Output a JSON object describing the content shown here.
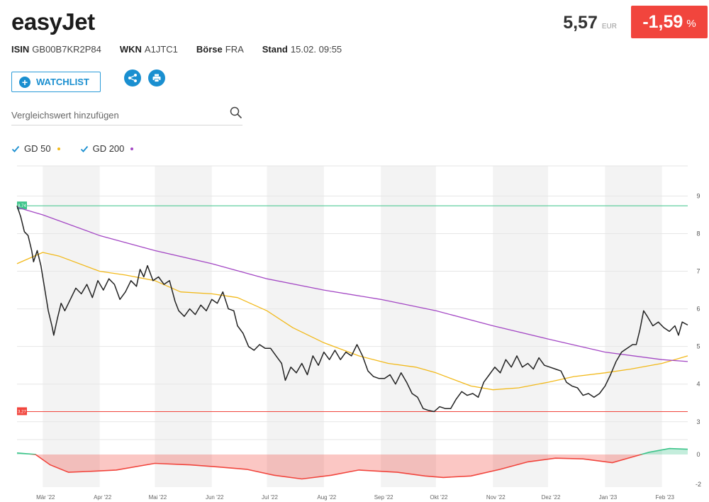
{
  "header": {
    "title": "easyJet",
    "price": "5,57",
    "currency": "EUR",
    "change": "-1,59",
    "change_unit": "%",
    "change_color": "#f1453d"
  },
  "meta": {
    "isin_label": "ISIN",
    "isin": "GB00B7KR2P84",
    "wkn_label": "WKN",
    "wkn": "A1JTC1",
    "exchange_label": "Börse",
    "exchange": "FRA",
    "stand_label": "Stand",
    "stand": "15.02. 09:55"
  },
  "actions": {
    "watchlist_label": "WATCHLIST",
    "share_icon": "share-icon",
    "print_icon": "print-icon"
  },
  "search": {
    "placeholder": "Vergleichswert hinzufügen"
  },
  "legend": {
    "gd50_label": "GD 50",
    "gd50_color": "#f2b91a",
    "gd200_label": "GD 200",
    "gd200_color": "#a347c4"
  },
  "chart_data": {
    "type": "line",
    "x_start": "2022-02-15",
    "x_end": "2023-02-15",
    "x_ticks": [
      {
        "label": "Mär '22",
        "date": "2022-03-01"
      },
      {
        "label": "Apr '22",
        "date": "2022-04-01"
      },
      {
        "label": "Mai '22",
        "date": "2022-05-01"
      },
      {
        "label": "Jun '22",
        "date": "2022-06-01"
      },
      {
        "label": "Jul '22",
        "date": "2022-07-01"
      },
      {
        "label": "Aug '22",
        "date": "2022-08-01"
      },
      {
        "label": "Sep '22",
        "date": "2022-09-01"
      },
      {
        "label": "Okt '22",
        "date": "2022-10-01"
      },
      {
        "label": "Nov '22",
        "date": "2022-11-01"
      },
      {
        "label": "Dez '22",
        "date": "2022-12-01"
      },
      {
        "label": "Jan '23",
        "date": "2023-01-01"
      },
      {
        "label": "Feb '23",
        "date": "2023-02-01"
      }
    ],
    "ylim": [
      2.6,
      9.8
    ],
    "yticks": [
      3,
      4,
      5,
      6,
      7,
      8,
      9
    ],
    "high_line": {
      "value": 8.74,
      "label": "8,74",
      "color": "#3cc48a"
    },
    "low_line": {
      "value": 3.27,
      "label": "3,27",
      "color": "#f1453d"
    },
    "series": [
      {
        "color": "#222222",
        "points": [
          [
            "2022-02-15",
            8.74
          ],
          [
            "2022-02-17",
            8.45
          ],
          [
            "2022-02-19",
            8.05
          ],
          [
            "2022-02-21",
            7.95
          ],
          [
            "2022-02-23",
            7.55
          ],
          [
            "2022-02-24",
            7.25
          ],
          [
            "2022-02-26",
            7.55
          ],
          [
            "2022-02-28",
            7.15
          ],
          [
            "2022-03-02",
            6.55
          ],
          [
            "2022-03-04",
            5.95
          ],
          [
            "2022-03-06",
            5.55
          ],
          [
            "2022-03-07",
            5.3
          ],
          [
            "2022-03-09",
            5.75
          ],
          [
            "2022-03-11",
            6.15
          ],
          [
            "2022-03-13",
            5.95
          ],
          [
            "2022-03-16",
            6.25
          ],
          [
            "2022-03-19",
            6.55
          ],
          [
            "2022-03-22",
            6.4
          ],
          [
            "2022-03-25",
            6.65
          ],
          [
            "2022-03-28",
            6.3
          ],
          [
            "2022-03-31",
            6.75
          ],
          [
            "2022-04-03",
            6.5
          ],
          [
            "2022-04-06",
            6.8
          ],
          [
            "2022-04-09",
            6.65
          ],
          [
            "2022-04-12",
            6.25
          ],
          [
            "2022-04-15",
            6.45
          ],
          [
            "2022-04-18",
            6.75
          ],
          [
            "2022-04-21",
            6.6
          ],
          [
            "2022-04-23",
            7.05
          ],
          [
            "2022-04-25",
            6.85
          ],
          [
            "2022-04-27",
            7.15
          ],
          [
            "2022-04-30",
            6.75
          ],
          [
            "2022-05-03",
            6.85
          ],
          [
            "2022-05-06",
            6.65
          ],
          [
            "2022-05-09",
            6.75
          ],
          [
            "2022-05-12",
            6.2
          ],
          [
            "2022-05-14",
            5.95
          ],
          [
            "2022-05-17",
            5.8
          ],
          [
            "2022-05-20",
            6.0
          ],
          [
            "2022-05-23",
            5.85
          ],
          [
            "2022-05-26",
            6.1
          ],
          [
            "2022-05-29",
            5.95
          ],
          [
            "2022-06-01",
            6.25
          ],
          [
            "2022-06-04",
            6.15
          ],
          [
            "2022-06-07",
            6.45
          ],
          [
            "2022-06-10",
            6.0
          ],
          [
            "2022-06-13",
            5.95
          ],
          [
            "2022-06-15",
            5.55
          ],
          [
            "2022-06-18",
            5.35
          ],
          [
            "2022-06-21",
            5.0
          ],
          [
            "2022-06-24",
            4.9
          ],
          [
            "2022-06-27",
            5.05
          ],
          [
            "2022-06-30",
            4.95
          ],
          [
            "2022-07-03",
            4.95
          ],
          [
            "2022-07-06",
            4.75
          ],
          [
            "2022-07-09",
            4.55
          ],
          [
            "2022-07-11",
            4.1
          ],
          [
            "2022-07-14",
            4.45
          ],
          [
            "2022-07-17",
            4.3
          ],
          [
            "2022-07-20",
            4.55
          ],
          [
            "2022-07-23",
            4.25
          ],
          [
            "2022-07-26",
            4.75
          ],
          [
            "2022-07-29",
            4.5
          ],
          [
            "2022-08-01",
            4.85
          ],
          [
            "2022-08-04",
            4.65
          ],
          [
            "2022-08-07",
            4.9
          ],
          [
            "2022-08-10",
            4.65
          ],
          [
            "2022-08-13",
            4.85
          ],
          [
            "2022-08-16",
            4.75
          ],
          [
            "2022-08-19",
            5.05
          ],
          [
            "2022-08-22",
            4.75
          ],
          [
            "2022-08-25",
            4.35
          ],
          [
            "2022-08-28",
            4.2
          ],
          [
            "2022-08-31",
            4.15
          ],
          [
            "2022-09-03",
            4.15
          ],
          [
            "2022-09-06",
            4.25
          ],
          [
            "2022-09-09",
            4.0
          ],
          [
            "2022-09-12",
            4.3
          ],
          [
            "2022-09-15",
            4.05
          ],
          [
            "2022-09-18",
            3.75
          ],
          [
            "2022-09-21",
            3.65
          ],
          [
            "2022-09-24",
            3.35
          ],
          [
            "2022-09-27",
            3.3
          ],
          [
            "2022-09-30",
            3.27
          ],
          [
            "2022-10-03",
            3.4
          ],
          [
            "2022-10-06",
            3.35
          ],
          [
            "2022-10-09",
            3.35
          ],
          [
            "2022-10-12",
            3.6
          ],
          [
            "2022-10-15",
            3.8
          ],
          [
            "2022-10-18",
            3.7
          ],
          [
            "2022-10-21",
            3.75
          ],
          [
            "2022-10-24",
            3.65
          ],
          [
            "2022-10-27",
            4.05
          ],
          [
            "2022-10-30",
            4.25
          ],
          [
            "2022-11-02",
            4.45
          ],
          [
            "2022-11-05",
            4.3
          ],
          [
            "2022-11-08",
            4.65
          ],
          [
            "2022-11-11",
            4.45
          ],
          [
            "2022-11-14",
            4.75
          ],
          [
            "2022-11-17",
            4.45
          ],
          [
            "2022-11-20",
            4.55
          ],
          [
            "2022-11-23",
            4.4
          ],
          [
            "2022-11-26",
            4.7
          ],
          [
            "2022-11-29",
            4.5
          ],
          [
            "2022-12-02",
            4.45
          ],
          [
            "2022-12-05",
            4.4
          ],
          [
            "2022-12-08",
            4.35
          ],
          [
            "2022-12-11",
            4.05
          ],
          [
            "2022-12-14",
            3.95
          ],
          [
            "2022-12-17",
            3.9
          ],
          [
            "2022-12-20",
            3.7
          ],
          [
            "2022-12-23",
            3.75
          ],
          [
            "2022-12-26",
            3.65
          ],
          [
            "2022-12-29",
            3.75
          ],
          [
            "2023-01-01",
            3.95
          ],
          [
            "2023-01-04",
            4.25
          ],
          [
            "2023-01-07",
            4.6
          ],
          [
            "2023-01-10",
            4.85
          ],
          [
            "2023-01-13",
            4.95
          ],
          [
            "2023-01-16",
            5.05
          ],
          [
            "2023-01-18",
            5.05
          ],
          [
            "2023-01-20",
            5.45
          ],
          [
            "2023-01-22",
            5.95
          ],
          [
            "2023-01-24",
            5.8
          ],
          [
            "2023-01-27",
            5.55
          ],
          [
            "2023-01-30",
            5.65
          ],
          [
            "2023-02-02",
            5.5
          ],
          [
            "2023-02-05",
            5.4
          ],
          [
            "2023-02-08",
            5.55
          ],
          [
            "2023-02-10",
            5.3
          ],
          [
            "2023-02-12",
            5.65
          ],
          [
            "2023-02-15",
            5.57
          ]
        ]
      },
      {
        "name": "GD 50",
        "color": "#f2b91a",
        "points": [
          [
            "2022-02-15",
            7.2
          ],
          [
            "2022-03-01",
            7.5
          ],
          [
            "2022-03-10",
            7.4
          ],
          [
            "2022-04-01",
            7.0
          ],
          [
            "2022-04-15",
            6.9
          ],
          [
            "2022-05-01",
            6.75
          ],
          [
            "2022-05-15",
            6.45
          ],
          [
            "2022-06-01",
            6.4
          ],
          [
            "2022-06-15",
            6.3
          ],
          [
            "2022-07-01",
            5.95
          ],
          [
            "2022-07-15",
            5.5
          ],
          [
            "2022-08-01",
            5.1
          ],
          [
            "2022-08-20",
            4.75
          ],
          [
            "2022-09-05",
            4.55
          ],
          [
            "2022-09-20",
            4.45
          ],
          [
            "2022-10-01",
            4.3
          ],
          [
            "2022-10-20",
            3.95
          ],
          [
            "2022-11-01",
            3.85
          ],
          [
            "2022-11-15",
            3.9
          ],
          [
            "2022-12-01",
            4.05
          ],
          [
            "2022-12-15",
            4.2
          ],
          [
            "2023-01-01",
            4.3
          ],
          [
            "2023-01-15",
            4.4
          ],
          [
            "2023-02-01",
            4.55
          ],
          [
            "2023-02-15",
            4.75
          ]
        ]
      },
      {
        "name": "GD 200",
        "color": "#a347c4",
        "points": [
          [
            "2022-02-15",
            8.7
          ],
          [
            "2022-03-01",
            8.5
          ],
          [
            "2022-04-01",
            7.95
          ],
          [
            "2022-05-01",
            7.55
          ],
          [
            "2022-06-01",
            7.2
          ],
          [
            "2022-07-01",
            6.8
          ],
          [
            "2022-08-01",
            6.5
          ],
          [
            "2022-09-01",
            6.25
          ],
          [
            "2022-10-01",
            5.95
          ],
          [
            "2022-11-01",
            5.55
          ],
          [
            "2022-12-01",
            5.2
          ],
          [
            "2023-01-01",
            4.85
          ],
          [
            "2023-02-01",
            4.65
          ],
          [
            "2023-02-15",
            4.6
          ]
        ]
      }
    ],
    "sub_chart": {
      "type": "area",
      "ylim": [
        -2.2,
        1.0
      ],
      "yticks": [
        -2,
        0
      ],
      "positive_color": "#3cc48a",
      "negative_color": "#f1453d",
      "points": [
        [
          "2022-02-15",
          0.1
        ],
        [
          "2022-02-25",
          0.0
        ],
        [
          "2022-03-05",
          -0.7
        ],
        [
          "2022-03-15",
          -1.2
        ],
        [
          "2022-03-25",
          -1.15
        ],
        [
          "2022-04-10",
          -1.05
        ],
        [
          "2022-05-01",
          -0.6
        ],
        [
          "2022-05-20",
          -0.7
        ],
        [
          "2022-06-05",
          -0.85
        ],
        [
          "2022-06-20",
          -1.0
        ],
        [
          "2022-07-05",
          -1.4
        ],
        [
          "2022-07-20",
          -1.65
        ],
        [
          "2022-08-05",
          -1.4
        ],
        [
          "2022-08-20",
          -1.05
        ],
        [
          "2022-09-10",
          -1.2
        ],
        [
          "2022-09-25",
          -1.45
        ],
        [
          "2022-10-05",
          -1.55
        ],
        [
          "2022-10-20",
          -1.45
        ],
        [
          "2022-11-05",
          -1.0
        ],
        [
          "2022-11-20",
          -0.5
        ],
        [
          "2022-12-05",
          -0.25
        ],
        [
          "2022-12-20",
          -0.3
        ],
        [
          "2023-01-05",
          -0.55
        ],
        [
          "2023-01-15",
          -0.2
        ],
        [
          "2023-01-25",
          0.15
        ],
        [
          "2023-02-05",
          0.4
        ],
        [
          "2023-02-15",
          0.35
        ]
      ]
    }
  }
}
